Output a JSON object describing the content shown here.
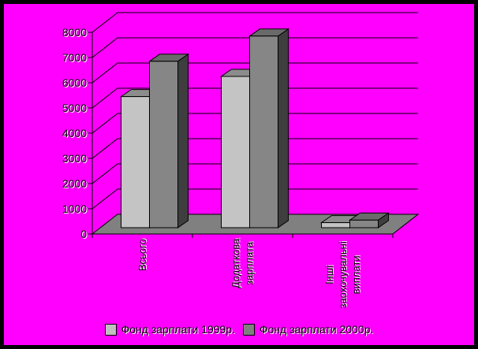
{
  "window": {
    "background_color": "#ff00ff",
    "border_color": "#000000"
  },
  "chart_data": {
    "type": "bar",
    "subtype": "3d-clustered-column",
    "title": "",
    "xlabel": "",
    "ylabel": "",
    "categories": [
      "Всього",
      "Додаткова зарплата",
      "Інші заохочувальні виплати"
    ],
    "category_label_lines": [
      [
        "Всього"
      ],
      [
        "Додаткова",
        "зарплата"
      ],
      [
        "Інші",
        "заохочувальні",
        "виплати"
      ]
    ],
    "series": [
      {
        "name": "Фонд зарплати 1999р.",
        "values": [
          5200,
          6000,
          200
        ],
        "front_color": "#c4c4c4",
        "top_color": "#8c8c8c",
        "side_color": "#626262",
        "legend_color": "#c0c0c0"
      },
      {
        "name": "Фонд зарплати 2000р.",
        "values": [
          6600,
          7600,
          300
        ],
        "front_color": "#868686",
        "top_color": "#6a6a6a",
        "side_color": "#3e3e3e",
        "legend_color": "#808080"
      }
    ],
    "ylim": [
      0,
      8000
    ],
    "ytick_step": 1000,
    "yticks": [
      "0",
      "1000",
      "2000",
      "3000",
      "4000",
      "5000",
      "6000",
      "7000",
      "8000"
    ],
    "grid": true,
    "legend_position": "bottom",
    "plot_background": "#ff00ff",
    "floor_color": "#808080",
    "axis_color": "#000000",
    "gridline_color": "#000000"
  }
}
